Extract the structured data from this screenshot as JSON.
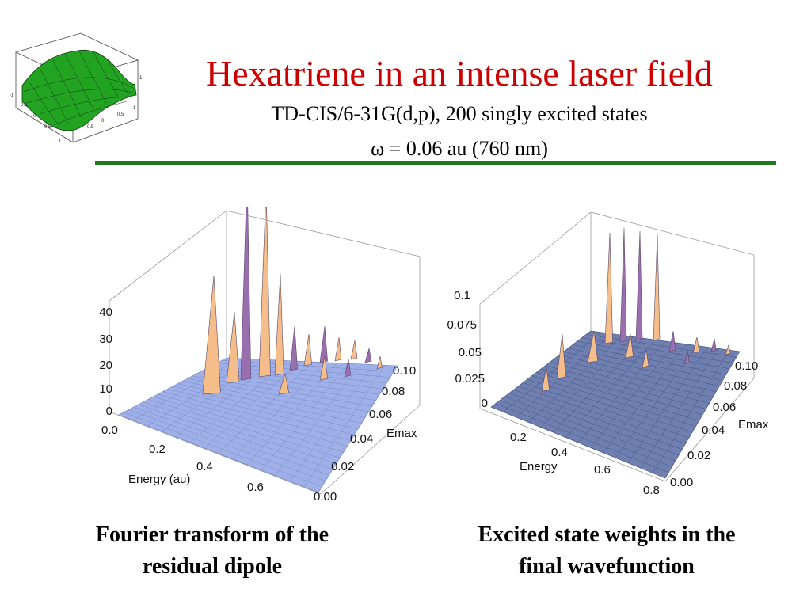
{
  "header": {
    "title": "Hexatriene in an intense laser field",
    "subtitle1": "TD-CIS/6-31G(d,p), 200 singly excited states",
    "subtitle2": "ω = 0.06 au (760 nm)"
  },
  "logo": {
    "icon": "green-3d-surface-icon",
    "color": "#22a322",
    "ticks_left": [
      "-1",
      "-0.5",
      "0",
      "0.5",
      "1"
    ],
    "ticks_right": [
      "1",
      "0.5",
      "0",
      "-0.5",
      "-1"
    ],
    "ticks_z": [
      "1",
      "-1"
    ]
  },
  "chart_data": [
    {
      "type": "surface3d",
      "z_ticks": [
        "40",
        "30",
        "20",
        "10",
        "0"
      ],
      "x_label": "Energy (au)",
      "x_ticks": [
        "0.0",
        "0.2",
        "0.4",
        "0.6"
      ],
      "y_label": "Emax",
      "y_ticks": [
        "0.10",
        "0.08",
        "0.06",
        "0.04",
        "0.02",
        "0.00"
      ],
      "zlim": [
        0,
        40
      ],
      "colors": {
        "base": "#9fb0e8",
        "peak": "#f5bd8a",
        "purple": "#9a6fb0"
      }
    },
    {
      "type": "surface3d",
      "z_ticks": [
        "0.1",
        "0.075",
        "0.05",
        "0.025",
        "0"
      ],
      "x_label": "Energy",
      "x_ticks": [
        "0.2",
        "0.4",
        "0.6",
        "0.8"
      ],
      "y_label": "Emax",
      "y_ticks": [
        "0.10",
        "0.08",
        "0.06",
        "0.04",
        "0.02",
        "0.00"
      ],
      "zlim": [
        0,
        0.1
      ],
      "colors": {
        "base": "#6f7fb0",
        "peak": "#f5bd8a",
        "purple": "#9a6fb0"
      }
    }
  ],
  "captions": {
    "left_line1": "Fourier transform of the",
    "left_line2": "residual dipole",
    "right_line1": "Excited state weights in the",
    "right_line2": "final wavefunction"
  }
}
